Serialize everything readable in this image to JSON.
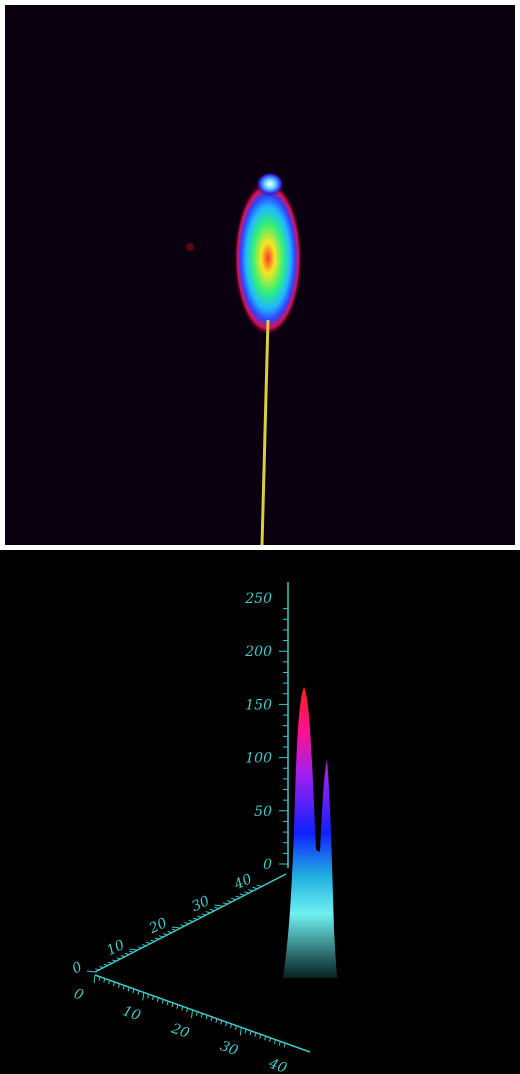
{
  "surface_plot": {
    "z_ticks": [
      "0",
      "50",
      "100",
      "150",
      "200",
      "250"
    ],
    "depth_ticks": [
      "0",
      "10",
      "20",
      "30",
      "40"
    ],
    "x_ticks": [
      "0",
      "10",
      "20",
      "30",
      "40"
    ]
  }
}
